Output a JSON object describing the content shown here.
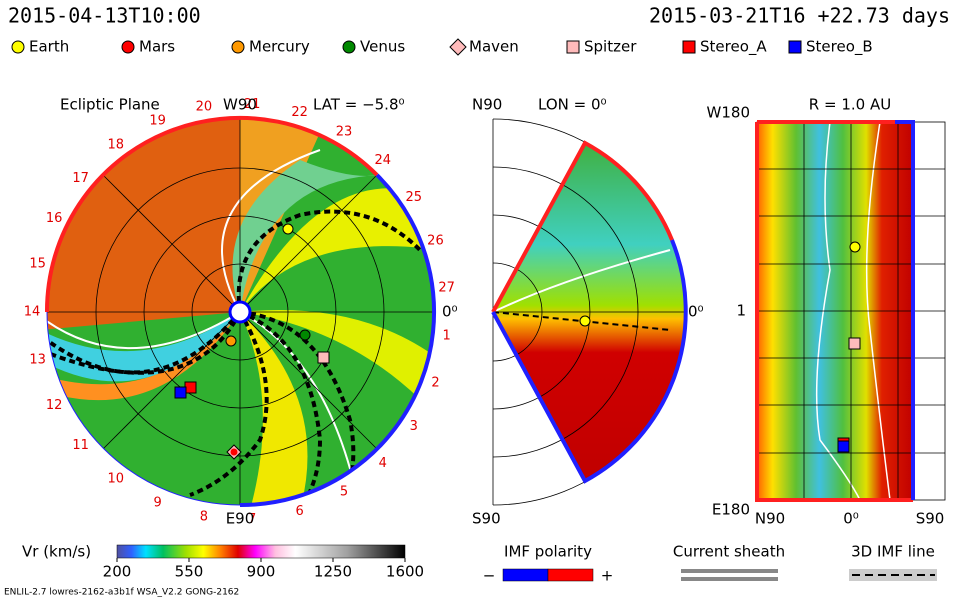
{
  "header": {
    "left": "2015-04-13T10:00",
    "right": "2015-03-21T16 +22.73 days"
  },
  "legend": [
    {
      "name": "Earth",
      "color": "#ffff00",
      "shape": "circle"
    },
    {
      "name": "Mars",
      "color": "#ff0000",
      "shape": "circle"
    },
    {
      "name": "Mercury",
      "color": "#ff9900",
      "shape": "circle"
    },
    {
      "name": "Venus",
      "color": "#008800",
      "shape": "circle"
    },
    {
      "name": "Maven",
      "color": "#ffbbbb",
      "shape": "diamond"
    },
    {
      "name": "Spitzer",
      "color": "#ffbbbb",
      "shape": "square"
    },
    {
      "name": "Stereo_A",
      "color": "#ff0000",
      "shape": "square"
    },
    {
      "name": "Stereo_B",
      "color": "#0000ff",
      "shape": "square"
    }
  ],
  "ecliptic": {
    "title": "Ecliptic Plane",
    "top": "W90",
    "lat": "LAT = −5.8⁰",
    "right": "0⁰",
    "bottom": "E90",
    "sectors": [
      "1",
      "2",
      "3",
      "4",
      "5",
      "6",
      "7",
      "8",
      "9",
      "10",
      "11",
      "12",
      "13",
      "14",
      "15",
      "16",
      "17",
      "18",
      "19",
      "20",
      "21",
      "22",
      "23",
      "24",
      "25",
      "26",
      "27"
    ]
  },
  "meridional": {
    "top": "N90",
    "lon": "LON = 0⁰",
    "right": "0⁰",
    "bottom": "S90"
  },
  "radial": {
    "title": "R = 1.0 AU",
    "top_left": "W180",
    "mid_left": "1",
    "bottom_left": "E180",
    "bottom": [
      "N90",
      "0⁰",
      "S90"
    ]
  },
  "colorbar": {
    "label": "Vr (km/s)",
    "ticks": [
      200,
      550,
      900,
      1250,
      1600
    ]
  },
  "imf": {
    "title": "IMF polarity",
    "minus": "−",
    "plus": "+"
  },
  "sheath": {
    "title": "Current sheath"
  },
  "imf_line": {
    "title": "3D IMF line"
  },
  "footer": "ENLIL-2.7 lowres-2162-a3b1f WSA_V2.2 GONG-2162"
}
